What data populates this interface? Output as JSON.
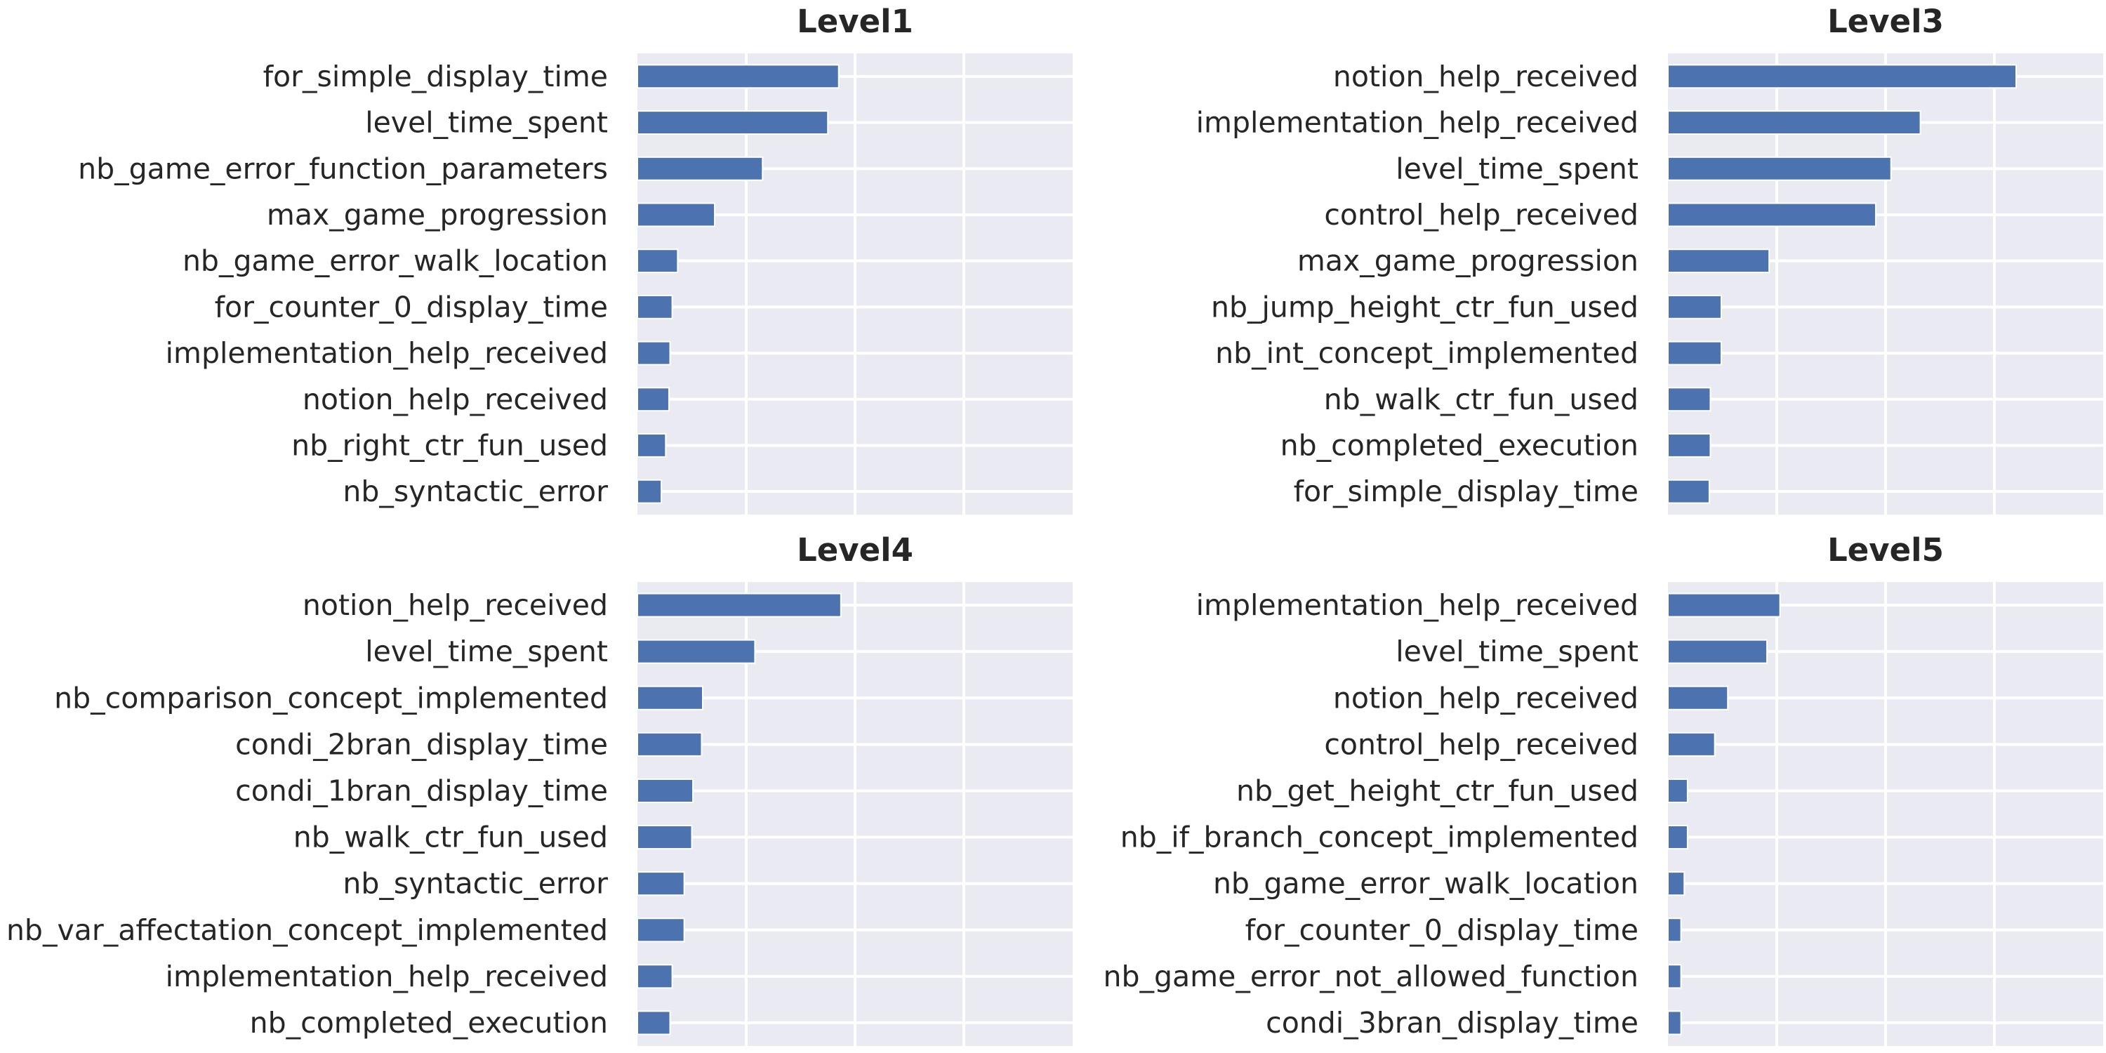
{
  "chart_data": [
    {
      "type": "bar",
      "orientation": "horizontal",
      "title": "Level1",
      "categories": [
        "for_simple_display_time",
        "level_time_spent",
        "nb_game_error_function_parameters",
        "max_game_progression",
        "nb_game_error_walk_location",
        "for_counter_0_display_time",
        "implementation_help_received",
        "notion_help_received",
        "nb_right_ctr_fun_used",
        "nb_syntactic_error"
      ],
      "values": [
        0.185,
        0.175,
        0.115,
        0.071,
        0.037,
        0.032,
        0.03,
        0.029,
        0.026,
        0.022
      ],
      "xlim": [
        0,
        0.4
      ],
      "grid": true,
      "xticklabels_visible": false,
      "bar_color": "#4c72b0"
    },
    {
      "type": "bar",
      "orientation": "horizontal",
      "title": "Level3",
      "categories": [
        "notion_help_received",
        "implementation_help_received",
        "level_time_spent",
        "control_help_received",
        "max_game_progression",
        "nb_jump_height_ctr_fun_used",
        "nb_int_concept_implemented",
        "nb_walk_ctr_fun_used",
        "nb_completed_execution",
        "for_simple_display_time"
      ],
      "values": [
        0.32,
        0.232,
        0.205,
        0.191,
        0.093,
        0.049,
        0.049,
        0.039,
        0.039,
        0.038
      ],
      "xlim": [
        0,
        0.4
      ],
      "grid": true,
      "xticklabels_visible": false,
      "bar_color": "#4c72b0"
    },
    {
      "type": "bar",
      "orientation": "horizontal",
      "title": "Level4",
      "categories": [
        "notion_help_received",
        "level_time_spent",
        "nb_comparison_concept_implemented",
        "condi_2bran_display_time",
        "condi_1bran_display_time",
        "nb_walk_ctr_fun_used",
        "nb_syntactic_error",
        "nb_var_affectation_concept_implemented",
        "implementation_help_received",
        "nb_completed_execution"
      ],
      "values": [
        0.187,
        0.108,
        0.06,
        0.059,
        0.051,
        0.05,
        0.043,
        0.043,
        0.032,
        0.03
      ],
      "xlim": [
        0,
        0.4
      ],
      "grid": true,
      "xticklabels_visible": false,
      "bar_color": "#4c72b0"
    },
    {
      "type": "bar",
      "orientation": "horizontal",
      "title": "Level5",
      "categories": [
        "implementation_help_received",
        "level_time_spent",
        "notion_help_received",
        "control_help_received",
        "nb_get_height_ctr_fun_used",
        "nb_if_branch_concept_implemented",
        "nb_game_error_walk_location",
        "for_counter_0_display_time",
        "nb_game_error_not_allowed_function",
        "condi_3bran_display_time"
      ],
      "values": [
        0.103,
        0.091,
        0.055,
        0.043,
        0.018,
        0.018,
        0.015,
        0.012,
        0.012,
        0.012
      ],
      "xlim": [
        0,
        0.4
      ],
      "grid": true,
      "xticklabels_visible": false,
      "bar_color": "#4c72b0"
    }
  ],
  "style": {
    "background": "#ffffff",
    "plot_background": "#eaeaf2",
    "grid_color": "#ffffff",
    "text_color": "#262626"
  }
}
